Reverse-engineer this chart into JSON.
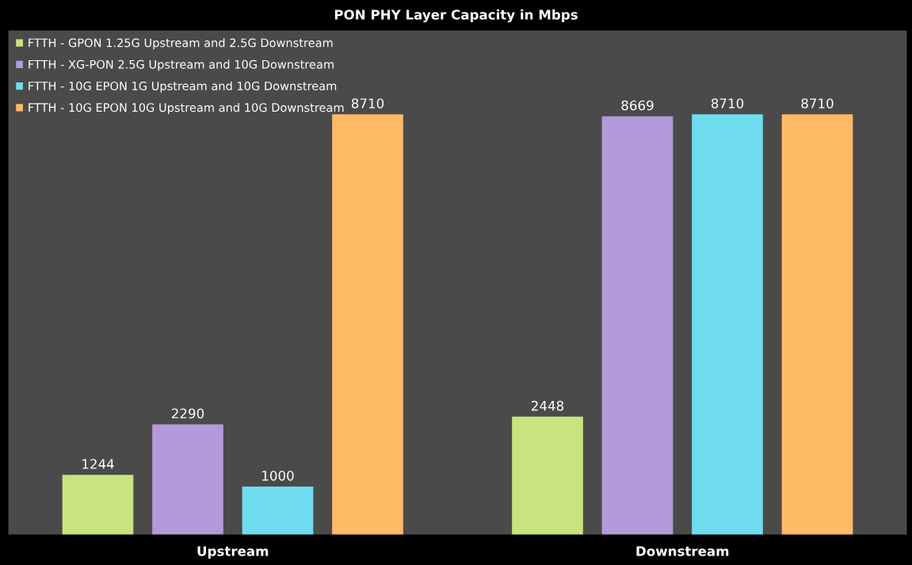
{
  "chart_data": {
    "type": "bar",
    "title": "PON PHY Layer Capacity in Mbps",
    "categories": [
      "Upstream",
      "Downstream"
    ],
    "series": [
      {
        "name": "FTTH - GPON 1.25G Upstream and 2.5G Downstream",
        "color": "#c8e47e",
        "values": [
          1244,
          2448
        ]
      },
      {
        "name": "FTTH - XG-PON 2.5G Upstream and 10G Downstream",
        "color": "#b49ad8",
        "values": [
          2290,
          8669
        ]
      },
      {
        "name": "FTTH - 10G EPON 1G Upstream and 10G Downstream",
        "color": "#6fdcf0",
        "values": [
          1000,
          8710
        ]
      },
      {
        "name": "FTTH - 10G EPON 10G Upstream and 10G Downstream",
        "color": "#ffba66",
        "values": [
          8710,
          8710
        ]
      }
    ],
    "data_labels": true,
    "legend": "top left",
    "grid": false
  }
}
